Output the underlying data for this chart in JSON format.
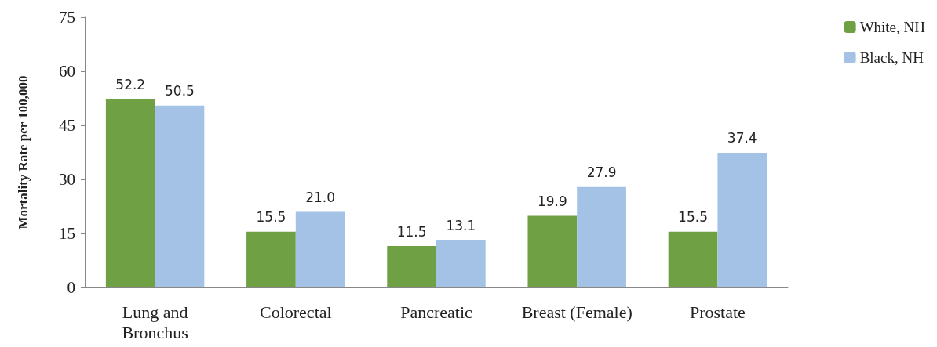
{
  "chart_data": {
    "type": "bar",
    "ylabel": "Mortality Rate per 100,000",
    "categories": [
      "Lung and\nBronchus",
      "Colorectal",
      "Pancreatic",
      "Breast (Female)",
      "Prostate"
    ],
    "series": [
      {
        "name": "White, NH",
        "color": "#70a044",
        "values": [
          52.2,
          15.5,
          11.5,
          19.9,
          15.5
        ],
        "value_labels": [
          "52.2",
          "15.5",
          "11.5",
          "19.9",
          "15.5"
        ]
      },
      {
        "name": "Black, NH",
        "color": "#a3c2e5",
        "values": [
          50.5,
          21.0,
          13.1,
          27.9,
          37.4
        ],
        "value_labels": [
          "50.5",
          "21.0",
          "13.1",
          "27.9",
          "37.4"
        ]
      }
    ],
    "ylim": [
      0,
      75
    ],
    "yticks": [
      0,
      15,
      30,
      45,
      60,
      75
    ],
    "grid": false,
    "legend": "top right"
  }
}
